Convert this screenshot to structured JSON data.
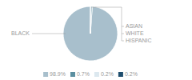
{
  "chart_data": {
    "type": "pie",
    "categories": [
      "BLACK",
      "ASIAN",
      "WHITE",
      "HISPANIC"
    ],
    "values": [
      98.9,
      0.7,
      0.2,
      0.2
    ],
    "value_labels": [
      "98.9%",
      "0.7%",
      "0.2%",
      "0.2%"
    ],
    "colors": [
      "#a8bfcc",
      "#5b8fa0",
      "#dce8ef",
      "#1f4e6e"
    ],
    "legend": "bottom"
  }
}
